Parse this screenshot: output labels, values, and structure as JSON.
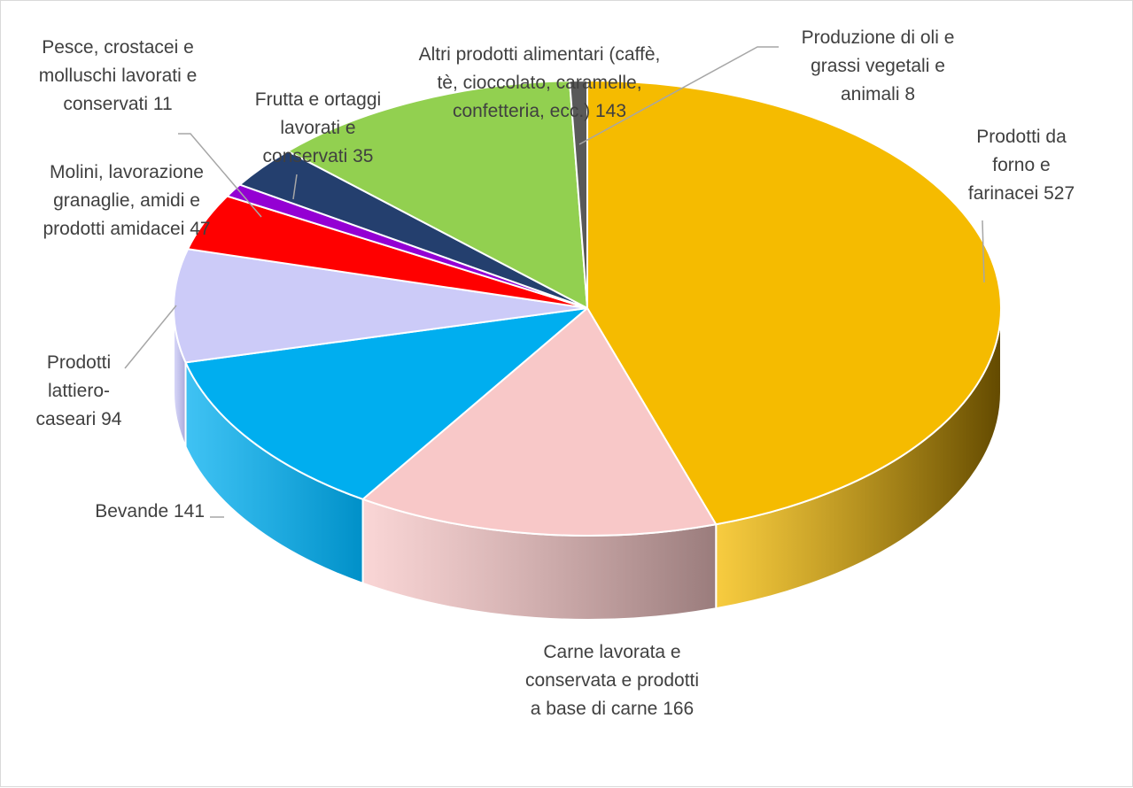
{
  "chart_data": {
    "type": "pie",
    "style": "3d",
    "title": "",
    "slices": [
      {
        "label_lines": [
          "Prodotti da",
          "forno e",
          "farinacei 527"
        ],
        "value": 527,
        "color": "#f5bb00",
        "side_color": "#634a00"
      },
      {
        "label_lines": [
          "Carne lavorata e",
          "conservata e prodotti",
          "a base di carne 166"
        ],
        "value": 166,
        "color": "#f8c8c8",
        "side_color": "#9a7c7c"
      },
      {
        "label_lines": [
          "Bevande 141"
        ],
        "value": 141,
        "color": "#00aeef",
        "side_color": "#0090c8"
      },
      {
        "label_lines": [
          "Prodotti",
          "lattiero-",
          "caseari 94"
        ],
        "value": 94,
        "color": "#cccbf8",
        "side_color": "#a9a8d8"
      },
      {
        "label_lines": [
          "Molini, lavorazione",
          "granaglie, amidi e",
          "prodotti amidacei 47"
        ],
        "value": 47,
        "color": "#ff0000",
        "side_color": "#b00000"
      },
      {
        "label_lines": [
          "Pesce, crostacei e",
          "molluschi lavorati e",
          "conservati 11"
        ],
        "value": 11,
        "color": "#9400d3",
        "side_color": "#6a0098"
      },
      {
        "label_lines": [
          "Frutta e ortaggi",
          "lavorati e",
          "conservati 35"
        ],
        "value": 35,
        "color": "#243f6e",
        "side_color": "#16284a"
      },
      {
        "label_lines": [
          "Altri prodotti alimentari (caffè,",
          "tè, cioccolato, caramelle,",
          "confetteria, ecc.) 143"
        ],
        "value": 143,
        "color": "#92d050",
        "side_color": "#6a9a38"
      },
      {
        "label_lines": [
          "Produzione di oli e",
          "grassi vegetali e",
          "animali 8"
        ],
        "value": 8,
        "color": "#595959",
        "side_color": "#3a3a3a"
      }
    ]
  }
}
